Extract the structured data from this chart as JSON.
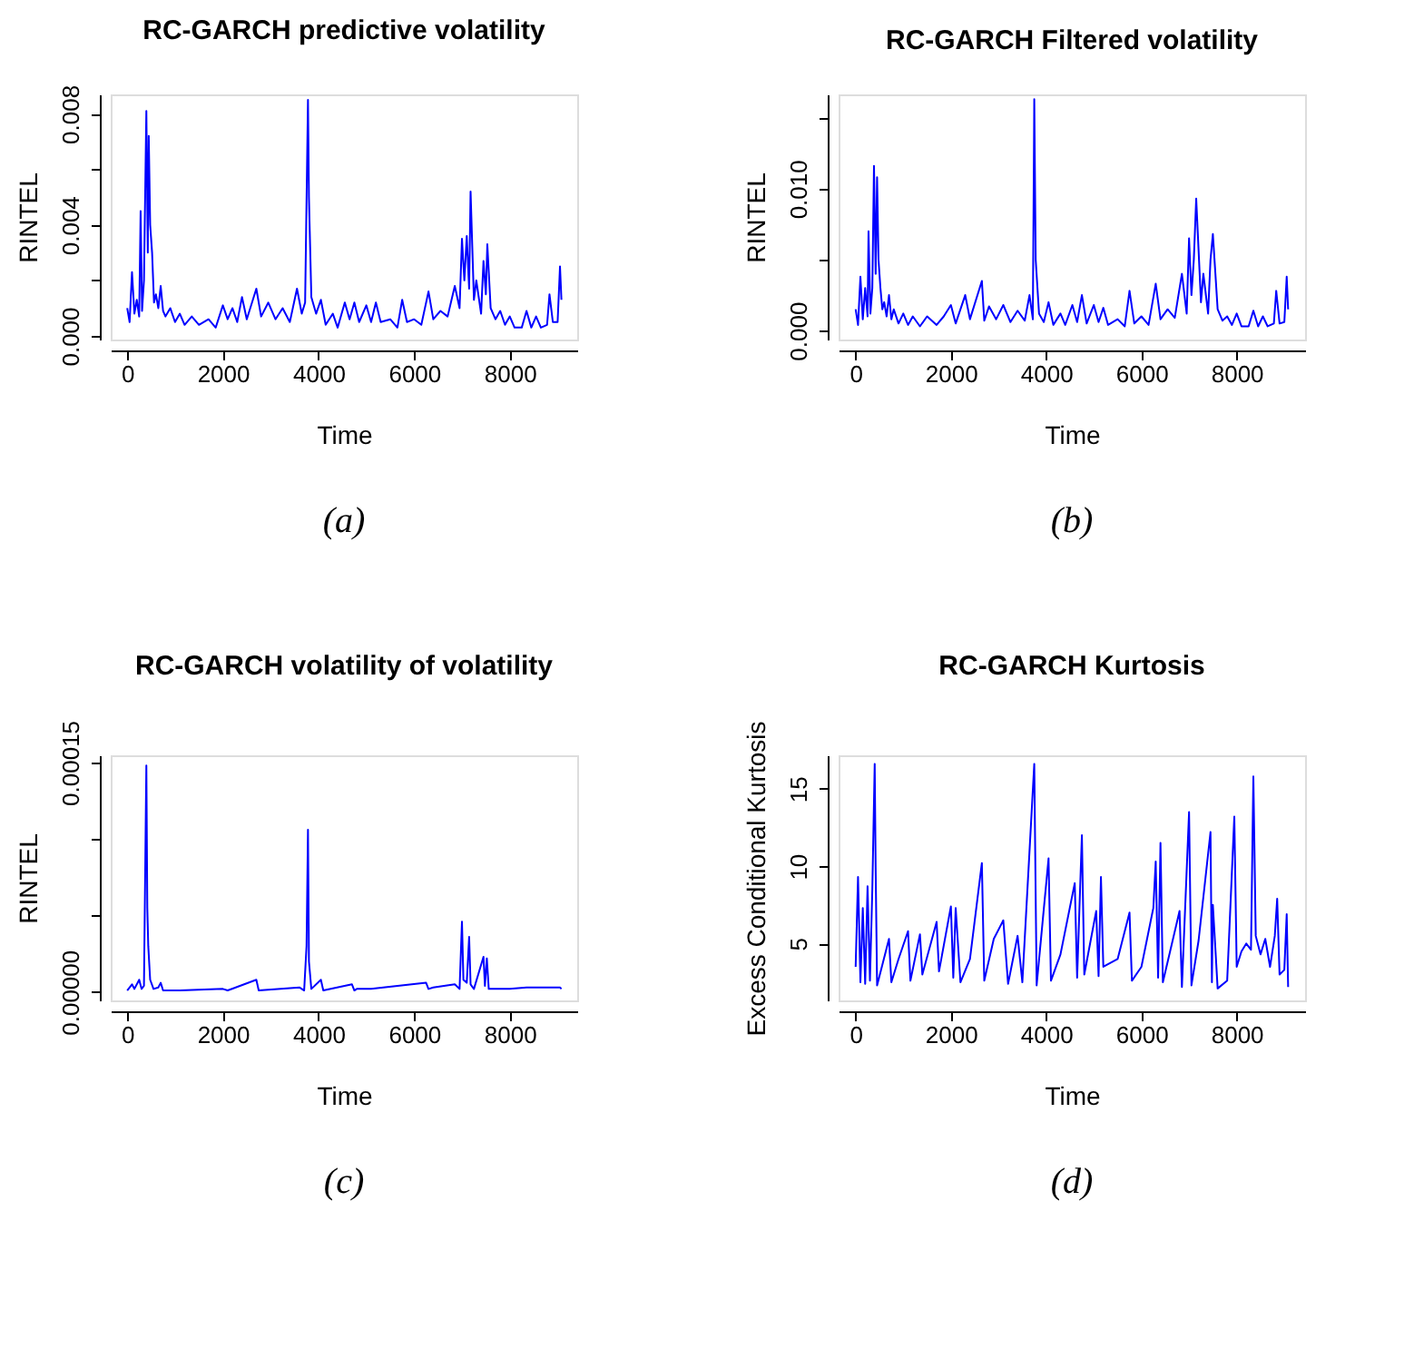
{
  "chart_data": [
    {
      "type": "line",
      "title": "RC-GARCH predictive volatility",
      "xlabel": "Time",
      "ylabel": "RINTEL",
      "annotations": [
        "(a)"
      ],
      "xlim": [
        -345,
        9410
      ],
      "ylim": [
        -0.00013,
        0.0087
      ],
      "xticks": [
        0,
        2000,
        4000,
        6000,
        8000
      ],
      "yticks": [
        {
          "value": 0,
          "label": "0.000"
        },
        {
          "value": 0.002,
          "label": null
        },
        {
          "value": 0.004,
          "label": "0.004"
        },
        {
          "value": 0.006,
          "label": null
        },
        {
          "value": 0.008,
          "label": "0.008"
        }
      ],
      "x": [
        0,
        50,
        100,
        150,
        200,
        250,
        280,
        310,
        350,
        400,
        430,
        450,
        480,
        520,
        560,
        600,
        650,
        700,
        750,
        800,
        900,
        1000,
        1100,
        1200,
        1350,
        1500,
        1700,
        1850,
        2000,
        2100,
        2200,
        2300,
        2400,
        2500,
        2700,
        2800,
        2950,
        3100,
        3250,
        3400,
        3550,
        3650,
        3720,
        3780,
        3800,
        3850,
        3950,
        4050,
        4150,
        4300,
        4400,
        4550,
        4650,
        4750,
        4850,
        5000,
        5100,
        5200,
        5300,
        5500,
        5650,
        5750,
        5850,
        6000,
        6150,
        6300,
        6400,
        6550,
        6700,
        6850,
        6950,
        7000,
        7050,
        7100,
        7150,
        7180,
        7250,
        7300,
        7400,
        7450,
        7500,
        7530,
        7600,
        7700,
        7800,
        7900,
        8000,
        8100,
        8250,
        8350,
        8450,
        8550,
        8650,
        8780,
        8830,
        8900,
        9000,
        9050,
        9080
      ],
      "series": [
        {
          "color": "#0000ff",
          "values": [
            0.001,
            0.0005,
            0.0023,
            0.0008,
            0.0013,
            0.0007,
            0.0045,
            0.0009,
            0.002,
            0.0081,
            0.003,
            0.0072,
            0.004,
            0.003,
            0.0012,
            0.0015,
            0.001,
            0.0018,
            0.0009,
            0.0007,
            0.001,
            0.0005,
            0.0008,
            0.0004,
            0.0007,
            0.0004,
            0.0006,
            0.0003,
            0.0011,
            0.0006,
            0.001,
            0.0005,
            0.0014,
            0.0006,
            0.0017,
            0.0007,
            0.0012,
            0.0006,
            0.001,
            0.0005,
            0.0017,
            0.0008,
            0.0012,
            0.0085,
            0.005,
            0.0014,
            0.0008,
            0.0013,
            0.0004,
            0.0008,
            0.0003,
            0.0012,
            0.0006,
            0.0012,
            0.0005,
            0.0011,
            0.0005,
            0.0012,
            0.0005,
            0.0006,
            0.0003,
            0.0013,
            0.0005,
            0.0006,
            0.0004,
            0.0016,
            0.0006,
            0.0009,
            0.0007,
            0.0018,
            0.001,
            0.0035,
            0.002,
            0.0036,
            0.0017,
            0.0052,
            0.0013,
            0.002,
            0.0008,
            0.0027,
            0.0015,
            0.0033,
            0.001,
            0.0006,
            0.0009,
            0.0004,
            0.0007,
            0.0003,
            0.0003,
            0.0009,
            0.0003,
            0.0007,
            0.0003,
            0.0004,
            0.0015,
            0.0005,
            0.0005,
            0.0025,
            0.0013
          ]
        }
      ]
    },
    {
      "type": "line",
      "title": "RC-GARCH Filtered volatility",
      "xlabel": "Time",
      "ylabel": "RINTEL",
      "annotations": [
        "(b)"
      ],
      "xlim": [
        -358,
        9436
      ],
      "ylim": [
        -0.00063,
        0.01664
      ],
      "xticks": [
        0,
        2000,
        4000,
        6000,
        8000
      ],
      "yticks": [
        {
          "value": 0,
          "label": "0.000"
        },
        {
          "value": 0.005,
          "label": null
        },
        {
          "value": 0.01,
          "label": "0.010"
        },
        {
          "value": 0.015,
          "label": null
        }
      ],
      "x": [
        0,
        50,
        100,
        150,
        200,
        250,
        270,
        310,
        350,
        385,
        420,
        450,
        480,
        520,
        560,
        600,
        650,
        700,
        750,
        800,
        900,
        1000,
        1100,
        1200,
        1350,
        1500,
        1700,
        1850,
        2000,
        2100,
        2300,
        2400,
        2650,
        2700,
        2800,
        2950,
        3100,
        3250,
        3400,
        3550,
        3650,
        3720,
        3750,
        3780,
        3850,
        3950,
        4050,
        4150,
        4300,
        4400,
        4550,
        4650,
        4750,
        4850,
        5000,
        5100,
        5200,
        5300,
        5500,
        5650,
        5750,
        5850,
        6000,
        6150,
        6300,
        6400,
        6550,
        6700,
        6850,
        6950,
        7000,
        7050,
        7100,
        7150,
        7250,
        7300,
        7400,
        7450,
        7500,
        7600,
        7700,
        7800,
        7900,
        8000,
        8100,
        8250,
        8350,
        8450,
        8550,
        8650,
        8780,
        8830,
        8900,
        9000,
        9050,
        9080
      ],
      "series": [
        {
          "color": "#0000ff",
          "values": [
            0.0015,
            0.0004,
            0.0038,
            0.0008,
            0.003,
            0.001,
            0.007,
            0.0012,
            0.003,
            0.0116,
            0.004,
            0.0108,
            0.005,
            0.003,
            0.0015,
            0.002,
            0.001,
            0.0025,
            0.0008,
            0.0015,
            0.0005,
            0.0012,
            0.0004,
            0.001,
            0.0003,
            0.001,
            0.0004,
            0.001,
            0.0018,
            0.0005,
            0.0025,
            0.0008,
            0.0035,
            0.0007,
            0.0017,
            0.0008,
            0.0018,
            0.0006,
            0.0014,
            0.0007,
            0.0025,
            0.0008,
            0.0163,
            0.005,
            0.0012,
            0.0006,
            0.002,
            0.0004,
            0.0012,
            0.0004,
            0.0018,
            0.0006,
            0.0025,
            0.0005,
            0.0018,
            0.0006,
            0.0016,
            0.0004,
            0.0008,
            0.0003,
            0.0028,
            0.0005,
            0.001,
            0.0004,
            0.0033,
            0.0008,
            0.0015,
            0.0009,
            0.004,
            0.0012,
            0.0065,
            0.0025,
            0.005,
            0.0093,
            0.002,
            0.004,
            0.0012,
            0.005,
            0.0068,
            0.0015,
            0.0007,
            0.001,
            0.0004,
            0.0012,
            0.0003,
            0.0003,
            0.0014,
            0.0003,
            0.001,
            0.0003,
            0.0005,
            0.0028,
            0.0005,
            0.0006,
            0.0038,
            0.0015
          ]
        }
      ]
    },
    {
      "type": "line",
      "title": "RC-GARCH volatility of volatility",
      "xlabel": "Time",
      "ylabel": "RINTEL",
      "annotations": [
        "(c)"
      ],
      "xlim": [
        -345,
        9410
      ],
      "ylim": [
        -5.5e-06,
        0.0001547
      ],
      "xticks": [
        0,
        2000,
        4000,
        6000,
        8000
      ],
      "yticks": [
        {
          "value": 0,
          "label": "0.00000"
        },
        {
          "value": 5e-05,
          "label": null
        },
        {
          "value": 0.0001,
          "label": null
        },
        {
          "value": 0.00015,
          "label": "0.00015"
        }
      ],
      "x": [
        0,
        100,
        150,
        250,
        300,
        350,
        400,
        420,
        440,
        480,
        550,
        650,
        700,
        750,
        1100,
        2000,
        2100,
        2700,
        2750,
        3600,
        3700,
        3750,
        3780,
        3800,
        3850,
        4050,
        4100,
        4700,
        4750,
        4800,
        5100,
        6250,
        6300,
        6400,
        6850,
        6950,
        7000,
        7030,
        7100,
        7150,
        7180,
        7250,
        7450,
        7480,
        7520,
        7560,
        8000,
        8350,
        8850,
        9050,
        9080
      ],
      "series": [
        {
          "color": "#0000ff",
          "values": [
            1e-06,
            5e-06,
            2e-06,
            8e-06,
            2e-06,
            4e-06,
            0.000148,
            5.5e-05,
            3e-05,
            8e-06,
            2e-06,
            3e-06,
            6e-06,
            1e-06,
            1e-06,
            2e-06,
            1e-06,
            8e-06,
            1e-06,
            3e-06,
            1e-06,
            3e-05,
            0.000106,
            2e-05,
            2e-06,
            8e-06,
            1e-06,
            5e-06,
            1e-06,
            2e-06,
            2e-06,
            6e-06,
            2e-06,
            3e-06,
            5e-06,
            2e-06,
            4.6e-05,
            8e-06,
            6e-06,
            3.6e-05,
            5e-06,
            2e-06,
            2.3e-05,
            4e-06,
            2.2e-05,
            2e-06,
            2e-06,
            3e-06,
            3e-06,
            3e-06,
            2e-06
          ]
        }
      ]
    },
    {
      "type": "line",
      "title": "RC-GARCH Kurtosis",
      "xlabel": "Time",
      "ylabel": "Excess Conditional Kurtosis",
      "annotations": [
        "(d)"
      ],
      "xlim": [
        -358,
        9436
      ],
      "ylim": [
        1.33,
        17.16
      ],
      "xticks": [
        0,
        2000,
        4000,
        6000,
        8000
      ],
      "yticks": [
        5,
        10,
        15
      ],
      "x": [
        0,
        50,
        100,
        150,
        200,
        250,
        300,
        350,
        400,
        420,
        450,
        550,
        700,
        750,
        900,
        1100,
        1150,
        1350,
        1400,
        1700,
        1750,
        2000,
        2050,
        2100,
        2200,
        2400,
        2650,
        2700,
        2900,
        3100,
        3200,
        3400,
        3500,
        3750,
        3800,
        4050,
        4100,
        4300,
        4600,
        4650,
        4750,
        4800,
        5050,
        5100,
        5150,
        5200,
        5500,
        5750,
        5800,
        6000,
        6250,
        6300,
        6350,
        6400,
        6450,
        6800,
        6850,
        7000,
        7050,
        7200,
        7450,
        7480,
        7500,
        7600,
        7800,
        7950,
        8000,
        8100,
        8200,
        8300,
        8350,
        8400,
        8500,
        8600,
        8700,
        8800,
        8850,
        8900,
        9000,
        9050,
        9080
      ],
      "series": [
        {
          "color": "#0000ff",
          "values": [
            3.5,
            9.3,
            2.5,
            7.3,
            2.4,
            8.7,
            2.6,
            8.5,
            16.6,
            9.9,
            2.3,
            3.5,
            5.3,
            2.5,
            4.0,
            5.8,
            2.6,
            5.6,
            3.0,
            6.4,
            3.2,
            7.4,
            2.8,
            7.3,
            2.5,
            4.0,
            10.2,
            2.6,
            5.3,
            6.5,
            2.4,
            5.5,
            2.5,
            16.6,
            2.3,
            10.5,
            2.6,
            4.3,
            8.9,
            2.8,
            12.0,
            3.0,
            7.1,
            2.9,
            9.3,
            3.5,
            4.0,
            7.0,
            2.6,
            3.5,
            7.3,
            10.3,
            2.8,
            11.5,
            2.5,
            7.1,
            2.2,
            13.5,
            2.3,
            5.2,
            12.2,
            2.5,
            7.5,
            2.1,
            2.6,
            13.2,
            3.5,
            4.5,
            5.0,
            4.6,
            15.8,
            5.5,
            4.3,
            5.3,
            3.5,
            5.5,
            7.9,
            3.0,
            3.3,
            6.9,
            2.2
          ]
        }
      ]
    }
  ]
}
